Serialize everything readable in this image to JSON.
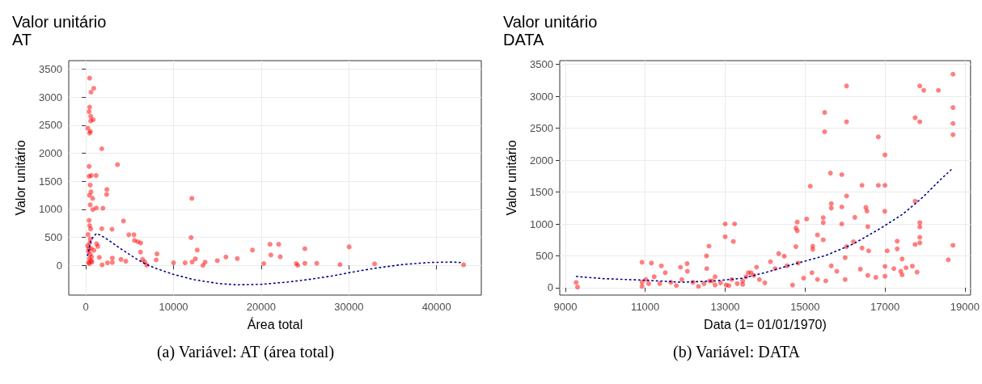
{
  "chart_data": [
    {
      "type": "scatter",
      "title": "Valor unitário",
      "subtitle": "AT",
      "xlabel": "Área total",
      "ylabel": "Valor unitário",
      "xlim": [
        -1950,
        45100
      ],
      "xticks": [
        0,
        10000,
        20000,
        30000,
        40000
      ],
      "ylim": [
        -530,
        3650
      ],
      "yticks": [
        0,
        500,
        1000,
        1500,
        2000,
        2500,
        3000,
        3500
      ],
      "grid": true,
      "marker": "circle",
      "annotations": [
        "(a) Variável: AT (área total)"
      ],
      "series": [
        {
          "color": "#ff0000",
          "x": [
            430,
            900,
            590,
            430,
            370,
            555,
            830,
            555,
            220,
            520,
            430,
            1820,
            3610,
            370,
            370,
            620,
            1170,
            490,
            590,
            400,
            770,
            2400,
            2370,
            12090,
            490,
            1200,
            1940,
            800,
            370,
            4290,
            430,
            2990,
            1820,
            12000,
            4900,
            5490,
            5550,
            5920,
            6260,
            6230,
            21000,
            21990,
            24980,
            30030,
            19000,
            12700,
            21100,
            22170,
            8110,
            8020,
            10000,
            11320,
            12120,
            12490,
            13600,
            13350,
            14990,
            15970,
            17270,
            20290,
            23990,
            24170,
            24980,
            26330,
            28980,
            32930,
            43080,
            6940,
            6720,
            6480,
            4560,
            4010,
            3020,
            3020,
            2470,
            1850,
            1540,
            1360,
            920,
            1230,
            300,
            400,
            500,
            350,
            600,
            450,
            250,
            650,
            550,
            300,
            700,
            200,
            400,
            500,
            600
          ],
          "values": [
            3338,
            3157,
            3088,
            2819,
            2741,
            2657,
            2597,
            2574,
            2444,
            2389,
            2357,
            2079,
            1796,
            1764,
            1588,
            1602,
            1602,
            1431,
            1310,
            1250,
            1194,
            1352,
            1264,
            1194,
            1079,
            1023,
            1019,
            995,
            801,
            792,
            708,
            644,
            653,
            495,
            546,
            546,
            444,
            421,
            398,
            236,
            375,
            375,
            296,
            329,
            273,
            273,
            185,
            153,
            204,
            97,
            46,
            46,
            60,
            116,
            56,
            0,
            83,
            148,
            120,
            32,
            32,
            0,
            37,
            37,
            14,
            28,
            9,
            5,
            60,
            106,
            74,
            106,
            51,
            130,
            46,
            9,
            143,
            338,
            268,
            384,
            50,
            120,
            200,
            300,
            80,
            400,
            550,
            150,
            650,
            250,
            60,
            350,
            30,
            470,
            300
          ]
        },
        {
          "type": "line",
          "color": "#00008b",
          "line_style": "dotted",
          "marker": "none",
          "x": [
            185,
            370,
            555,
            863,
            1233,
            2159,
            3084,
            4009,
            4934,
            5859,
            6938,
            8017,
            10022,
            12334,
            15110,
            17268,
            20043,
            22818,
            25285,
            28060,
            30219,
            32994,
            36078,
            39161,
            41628,
            42707
          ],
          "values": [
            176,
            292,
            431,
            514,
            569,
            495,
            394,
            292,
            199,
            106,
            14,
            -56,
            -162,
            -255,
            -324,
            -347,
            -338,
            -301,
            -255,
            -190,
            -125,
            -51,
            14,
            51,
            60,
            51
          ]
        }
      ]
    },
    {
      "type": "scatter",
      "title": "Valor unitário",
      "subtitle": "DATA",
      "xlabel": "Data (1= 01/01/1970)",
      "ylabel": "Valor unitário",
      "xlim": [
        8860,
        19140
      ],
      "xticks": [
        9000,
        11000,
        13000,
        15000,
        17000,
        19000
      ],
      "ylim": [
        -115,
        3560
      ],
      "yticks": [
        0,
        500,
        1000,
        1500,
        2000,
        2500,
        3000,
        3500
      ],
      "grid": true,
      "marker": "circle",
      "annotations": [
        "(b) Variável: DATA"
      ],
      "series": [
        {
          "color": "#ff0000",
          "x": [
            9270,
            9305,
            18700,
            17870,
            17970,
            18335,
            16036,
            18700,
            18700,
            18700,
            15489,
            15489,
            16036,
            17753,
            17870,
            16832,
            16998,
            15634,
            15918,
            15129,
            16424,
            16832,
            16998,
            16036,
            15655,
            15655,
            16521,
            16548,
            15918,
            17753,
            16244,
            15039,
            15454,
            15454,
            14803,
            14769,
            14803,
            15918,
            16992,
            16569,
            17870,
            17870,
            17870,
            17870,
            17753,
            18700,
            18584,
            13000,
            13235,
            13000,
            13204,
            12594,
            12532,
            12538,
            15309,
            15454,
            15191,
            15191,
            14769,
            16036,
            16209,
            16424,
            16590,
            17054,
            17304,
            17304,
            17428,
            17684,
            17801,
            17525,
            17220,
            16998,
            16998,
            16770,
            17394,
            17428,
            16569,
            16382,
            16001,
            16001,
            15794,
            15655,
            15517,
            15309,
            15171,
            14963,
            14686,
            14824,
            14547,
            14339,
            14478,
            14249,
            14132,
            13993,
            13855,
            13716,
            13578,
            13439,
            13300,
            13162,
            13024,
            12885,
            12747,
            12608,
            12470,
            12331,
            12192,
            12054,
            11916,
            11777,
            11638,
            11500,
            11361,
            11223,
            11154,
            11085,
            10918,
            10918,
            10918,
            11015,
            11403,
            11881,
            12047,
            12677,
            13093,
            13439,
            13647,
            13785,
            13522,
            12747
          ],
          "values": [
            82,
            9,
            3348,
            3163,
            3094,
            3094,
            3163,
            2824,
            2575,
            2399,
            2747,
            2446,
            2601,
            2665,
            2601,
            2365,
            2082,
            1798,
            1773,
            1592,
            1605,
            1605,
            1605,
            1438,
            1318,
            1249,
            1258,
            1202,
            1266,
            1356,
            1103,
            1077,
            1099,
            1021,
            1030,
            936,
            893,
            1000,
            1197,
            957,
            1021,
            953,
            790,
            704,
            678,
            665,
            438,
            1000,
            1000,
            798,
            725,
            652,
            498,
            300,
            828,
            751,
            652,
            601,
            644,
            644,
            721,
            622,
            579,
            579,
            730,
            609,
            451,
            339,
            245,
            313,
            300,
            335,
            180,
            163,
            258,
            202,
            193,
            292,
            472,
            129,
            258,
            343,
            107,
            129,
            236,
            150,
            43,
            386,
            343,
            536,
            494,
            300,
            408,
            77,
            129,
            193,
            236,
            107,
            64,
            129,
            43,
            77,
            43,
            107,
            64,
            21,
            86,
            258,
            129,
            34,
            86,
            236,
            64,
            172,
            386,
            64,
            399,
            86,
            21,
            129,
            343,
            322,
            378,
            107,
            34,
            52,
            236,
            322,
            172,
            172
          ]
        },
        {
          "type": "line",
          "color": "#00008b",
          "line_style": "dotted",
          "marker": "none",
          "x": [
            9277,
            9976,
            10918,
            11916,
            12747,
            13439,
            13993,
            14686,
            15517,
            16209,
            16902,
            17456,
            17940,
            18425,
            18700
          ],
          "values": [
            176,
            142,
            120,
            86,
            107,
            150,
            236,
            365,
            506,
            687,
            936,
            1159,
            1416,
            1717,
            1876
          ]
        }
      ]
    }
  ]
}
